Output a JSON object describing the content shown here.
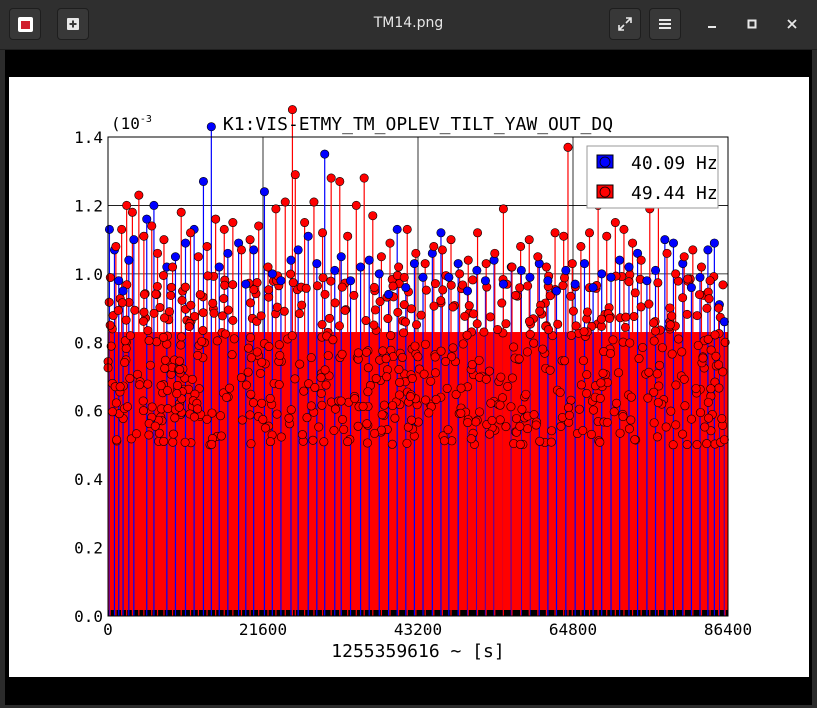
{
  "window": {
    "title": "TM14.png",
    "buttons": {
      "new_tab_icon": "plus-square-icon",
      "fullscreen_icon": "expand-icon",
      "menu_icon": "hamburger-icon",
      "minimize_icon": "minimize-icon",
      "maximize_icon": "maximize-icon",
      "close_icon": "close-icon"
    }
  },
  "chart_data": {
    "type": "scatter",
    "title": "K1:VIS-ETMY_TM_OPLEV_TILT_YAW_OUT_DQ",
    "xlabel": "1255359616 ~ [s]",
    "ylabel": "",
    "y_multiplier": "(10",
    "y_multiplier_exp": "-3",
    "xlim": [
      0,
      86400
    ],
    "ylim": [
      0.0,
      1.4
    ],
    "x_ticks": [
      "0",
      "21600",
      "43200",
      "64800",
      "86400"
    ],
    "y_ticks": [
      "0.0",
      "0.2",
      "0.4",
      "0.6",
      "0.8",
      "1.0",
      "1.2",
      "1.4"
    ],
    "grid": true,
    "legend_position": "top-right",
    "series": [
      {
        "name": "40.09 Hz",
        "color": "#0000ff",
        "x": [
          200,
          900,
          1500,
          2100,
          2900,
          3600,
          5400,
          6400,
          8200,
          9400,
          10800,
          12000,
          13300,
          14400,
          15500,
          16700,
          18200,
          19200,
          20300,
          21800,
          22900,
          24100,
          25500,
          26500,
          27900,
          29100,
          30200,
          31600,
          32500,
          33800,
          35200,
          36400,
          37800,
          39100,
          40300,
          41500,
          42700,
          43900,
          45200,
          46400,
          47500,
          48800,
          50100,
          51400,
          52600,
          53800,
          55100,
          56200,
          57600,
          58800,
          60100,
          61300,
          62500,
          63800,
          65100,
          66400,
          67600,
          68800,
          70100,
          71300,
          72600,
          73800,
          75100,
          76300,
          77600,
          78800,
          80100,
          81300,
          82500,
          83600,
          84500,
          85200,
          85900
        ],
        "y": [
          1.13,
          1.07,
          0.98,
          0.95,
          1.04,
          1.1,
          1.16,
          1.2,
          1.02,
          1.05,
          1.09,
          1.13,
          1.27,
          1.43,
          1.02,
          1.06,
          1.09,
          0.97,
          1.07,
          1.24,
          1.0,
          0.98,
          1.04,
          1.07,
          1.11,
          1.03,
          1.35,
          1.01,
          1.05,
          0.98,
          1.02,
          1.04,
          1.0,
          0.94,
          1.13,
          0.96,
          1.03,
          0.99,
          1.06,
          1.12,
          0.99,
          1.03,
          0.95,
          1.01,
          0.98,
          1.04,
          0.97,
          1.02,
          1.01,
          0.99,
          1.03,
          0.98,
          0.95,
          1.01,
          0.97,
          1.03,
          0.96,
          1.0,
          0.99,
          1.04,
          1.02,
          1.06,
          0.98,
          1.01,
          1.1,
          1.09,
          1.03,
          0.96,
          0.99,
          1.07,
          1.09,
          0.91,
          0.86
        ]
      },
      {
        "name": "49.44 Hz",
        "color": "#ff0000",
        "x": [
          300,
          1100,
          1900,
          2600,
          3400,
          4300,
          5000,
          6100,
          6900,
          7800,
          9000,
          10200,
          11500,
          12600,
          13800,
          15000,
          16200,
          17400,
          18600,
          19800,
          21000,
          22300,
          23400,
          24700,
          25700,
          26100,
          27400,
          28700,
          29900,
          31100,
          32300,
          33400,
          34600,
          35700,
          36900,
          38100,
          39300,
          40500,
          41700,
          42900,
          44200,
          45400,
          46600,
          47800,
          49000,
          50200,
          51500,
          52700,
          53900,
          55100,
          56300,
          57500,
          58700,
          59900,
          61100,
          62300,
          63500,
          64100,
          64700,
          65900,
          67100,
          68300,
          69500,
          70700,
          71900,
          73100,
          74300,
          75500,
          76700,
          77900,
          79100,
          80300,
          81500,
          82700,
          83900,
          85100,
          86000
        ],
        "y": [
          0.85,
          1.08,
          1.13,
          1.2,
          1.18,
          1.23,
          1.11,
          1.14,
          1.06,
          1.1,
          1.02,
          1.18,
          1.12,
          1.05,
          1.08,
          1.16,
          1.13,
          1.15,
          1.07,
          1.1,
          1.14,
          1.02,
          1.19,
          1.21,
          1.48,
          1.29,
          1.15,
          1.21,
          1.12,
          1.28,
          1.27,
          1.11,
          1.2,
          1.28,
          1.17,
          1.05,
          1.09,
          1.02,
          1.13,
          1.06,
          1.03,
          1.08,
          1.07,
          1.1,
          1.0,
          1.04,
          1.12,
          1.03,
          1.06,
          1.19,
          1.02,
          1.08,
          1.1,
          1.05,
          1.02,
          1.12,
          1.11,
          1.37,
          1.03,
          1.08,
          1.12,
          1.2,
          1.11,
          1.15,
          1.13,
          1.09,
          1.04,
          1.19,
          1.25,
          1.06,
          1.0,
          1.05,
          1.07,
          1.02,
          0.98,
          0.9,
          0.8
        ]
      }
    ],
    "dense_floor_band": {
      "description_values": "dense markers between 0.6 and 0.95 across the full x range; filled region from 0 to ~0.8",
      "band_low": 0.6,
      "band_high": 0.95
    }
  }
}
